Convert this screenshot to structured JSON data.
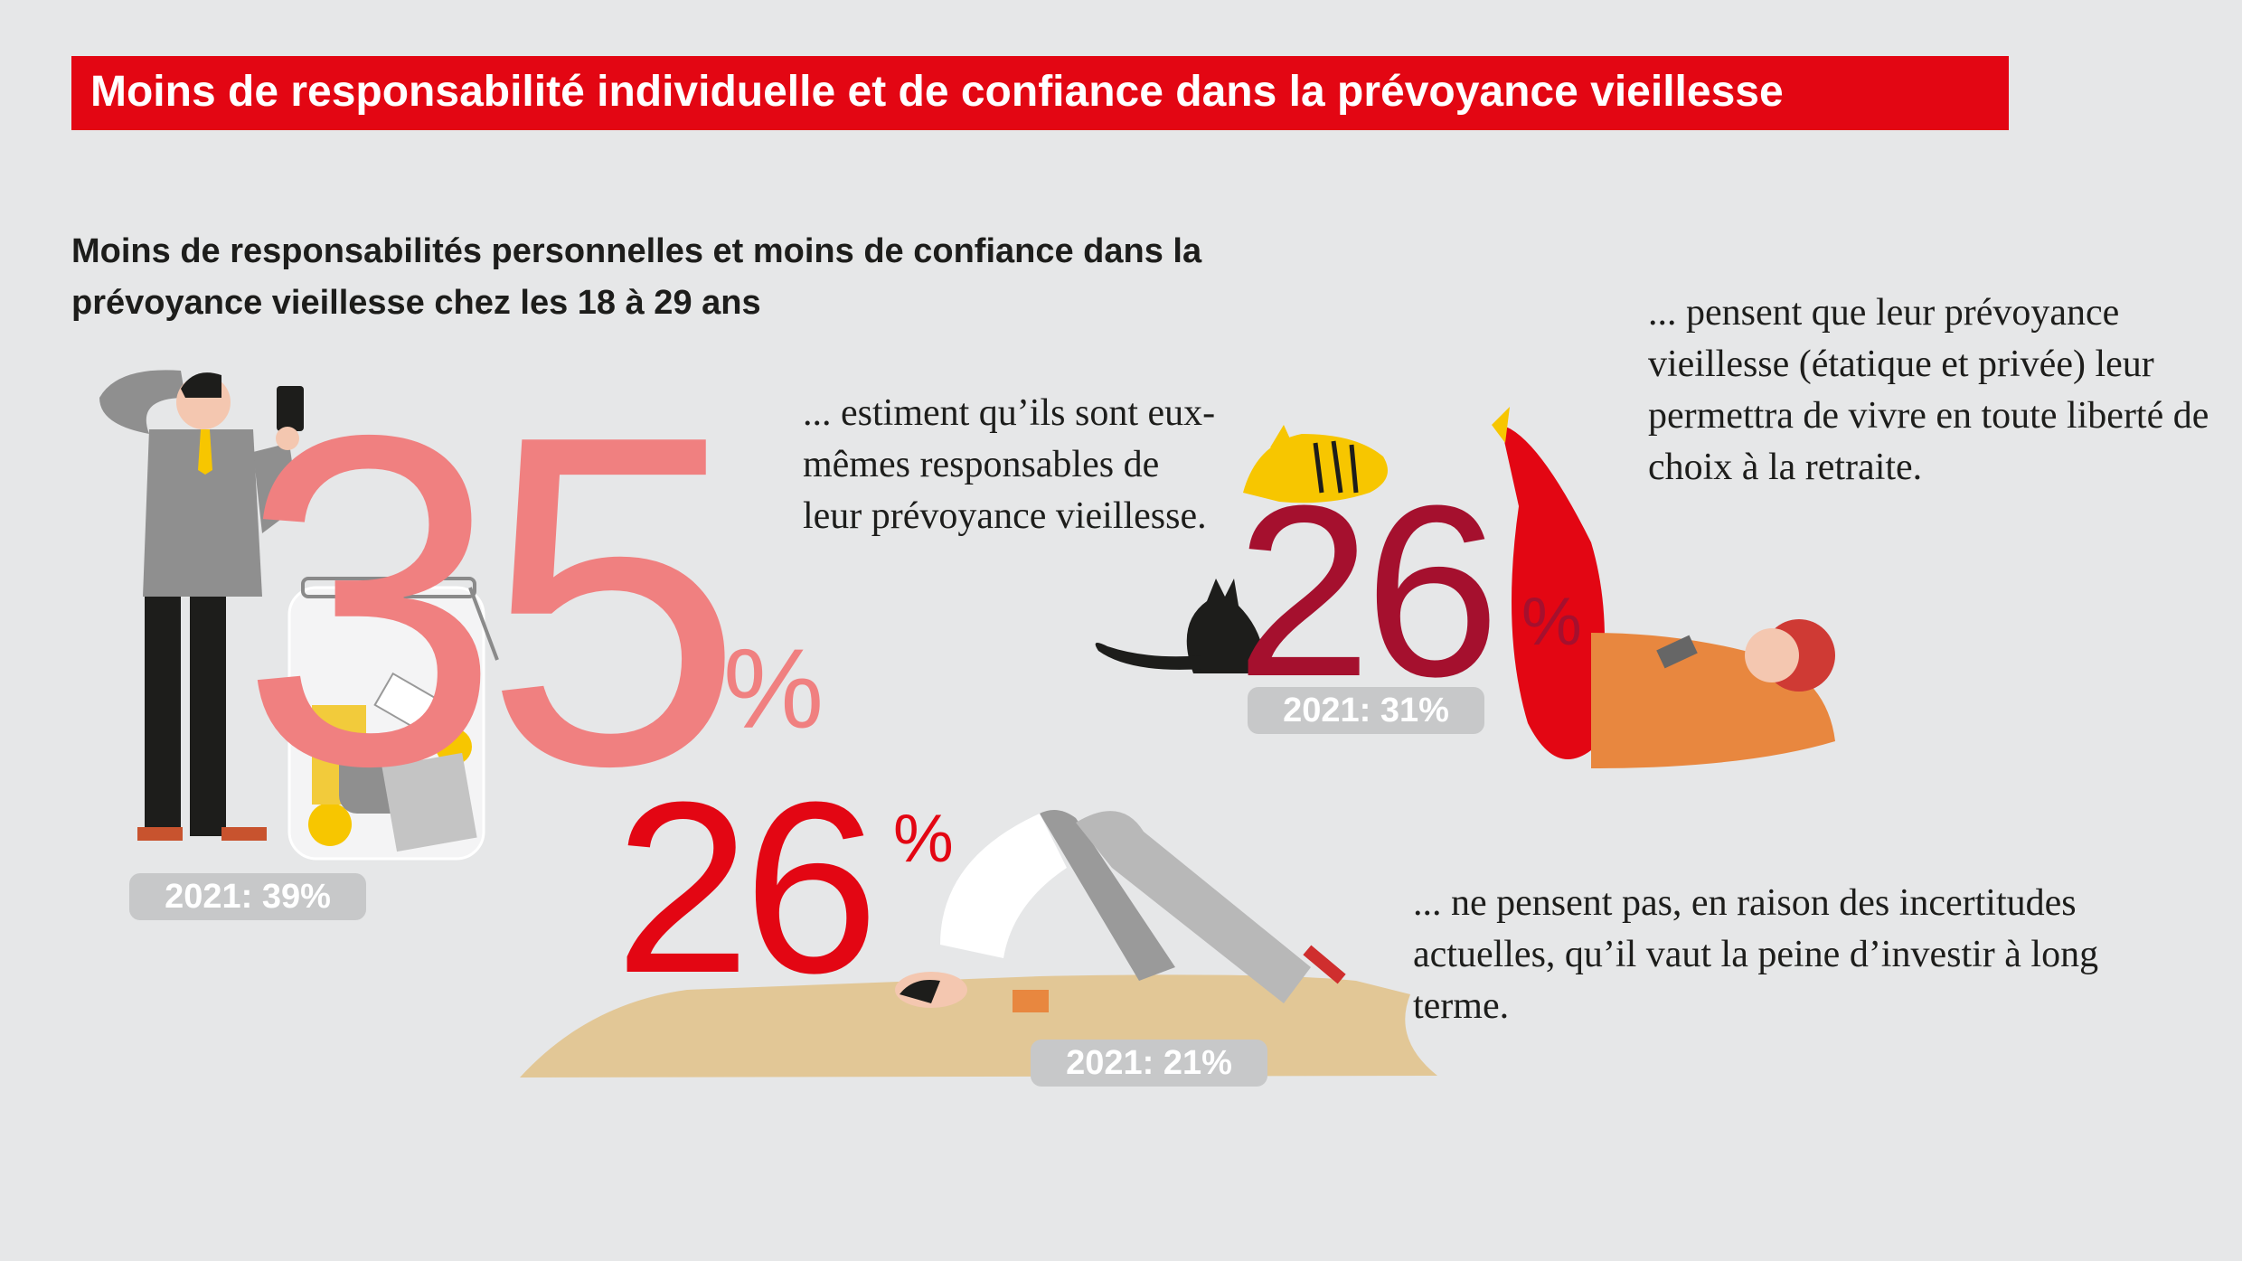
{
  "title": "Moins de responsabilité individuelle et de confiance dans la prévoyance vieillesse",
  "subtitle": "Moins de responsabilités personnelles et moins de confiance dans la prévoyance vieillesse chez les 18 à 29 ans",
  "colors": {
    "brand_red": "#e30613",
    "salmon": "#f08080",
    "dark_red": "#a5102e",
    "grey_pill": "#c7c8c9",
    "background": "#e6e7e8"
  },
  "chart_data": {
    "type": "bar",
    "categories": [
      "... estiment qu’ils sont eux-mêmes responsables de leur prévoyance vieillesse.",
      "... pensent que leur prévoyance vieillesse (étatique et privée) leur permettra de vivre en toute liberté de choix à la retraite.",
      "... ne pensent pas, en raison des incertitudes actuelles, qu’il vaut la peine d’investir à long terme."
    ],
    "series": [
      {
        "values": [
          35,
          26,
          26
        ]
      },
      {
        "name": "2021",
        "values": [
          39,
          31,
          21
        ]
      }
    ],
    "stats": [
      {
        "number": "35",
        "unit": "%",
        "comparison": "2021: 39%",
        "color": "#f08080",
        "text": "... estiment qu’ils sont eux-mêmes responsables de leur prévoyance vieillesse."
      },
      {
        "number": "26",
        "unit": "%",
        "comparison": "2021: 31%",
        "color": "#a5102e",
        "text": "... pensent que leur prévoyance vieillesse (étatique et privée) leur permettra de vivre en toute liberté de choix à la retraite."
      },
      {
        "number": "26",
        "unit": "%",
        "comparison": "2021: 21%",
        "color": "#e30613",
        "text": "... ne pensent pas, en raison des incertitudes actuelles, qu’il vaut la peine d’investir à long terme."
      }
    ]
  },
  "illustrations": [
    "man-with-calculator-icon",
    "savings-jar-icon",
    "cat-icon",
    "tiger-icon",
    "reclining-woman-icon",
    "head-in-sand-person-icon"
  ]
}
